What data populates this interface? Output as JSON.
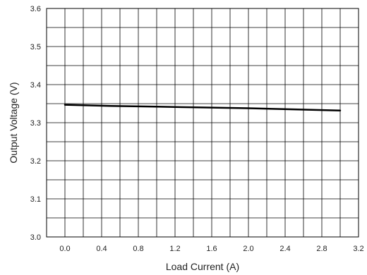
{
  "chart_data": {
    "type": "line",
    "title": "",
    "xlabel": "Load Current (A)",
    "ylabel": "Output Voltage (V)",
    "xlim": [
      -0.2,
      3.2
    ],
    "ylim": [
      3.0,
      3.6
    ],
    "x_ticks": [
      0.0,
      0.4,
      0.8,
      1.2,
      1.6,
      2.0,
      2.4,
      2.8,
      3.2
    ],
    "x_tick_labels": [
      "0.0",
      "0.4",
      "0.8",
      "1.2",
      "1.6",
      "2.0",
      "2.4",
      "2.8",
      "3.2"
    ],
    "y_ticks": [
      3.0,
      3.1,
      3.2,
      3.3,
      3.4,
      3.5,
      3.6
    ],
    "y_tick_labels": [
      "3.0",
      "3.1",
      "3.2",
      "3.3",
      "3.4",
      "3.5",
      "3.6"
    ],
    "grid": true,
    "series": [
      {
        "x": [
          0.0,
          0.5,
          1.0,
          1.5,
          2.0,
          2.5,
          3.0
        ],
        "y": [
          3.347,
          3.344,
          3.342,
          3.34,
          3.338,
          3.335,
          3.332
        ],
        "color": "#000000"
      }
    ]
  }
}
